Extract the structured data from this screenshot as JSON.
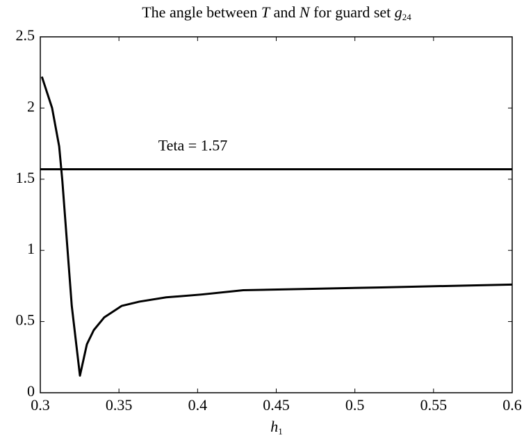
{
  "chart_data": {
    "type": "line",
    "title": [
      "The angle between ",
      "T",
      " and ",
      "N",
      " for guard set ",
      "g",
      "24"
    ],
    "xlabel": [
      "h",
      "1"
    ],
    "x": [
      0.301,
      0.3075,
      0.312,
      0.314,
      0.317,
      0.32,
      0.3252,
      0.3296,
      0.334,
      0.3407,
      0.3517,
      0.363,
      0.38,
      0.4025,
      0.429,
      0.473,
      0.517,
      0.6
    ],
    "series": [
      {
        "color": "#000000",
        "values": [
          2.22,
          2.0,
          1.73,
          1.49,
          1.05,
          0.61,
          0.12,
          0.34,
          0.44,
          0.53,
          0.61,
          0.64,
          0.67,
          0.69,
          0.72,
          0.73,
          0.74,
          0.76
        ]
      }
    ],
    "hlines": [
      {
        "value": 1.57,
        "label": "Teta = 1.57",
        "color": "#000000"
      }
    ],
    "xlim": [
      0.3,
      0.6
    ],
    "xticks": [
      0.3,
      0.35,
      0.4,
      0.45,
      0.5,
      0.55,
      0.6
    ],
    "ylim": [
      0,
      2.5
    ],
    "yticks": [
      0,
      0.5,
      1,
      1.5,
      2,
      2.5
    ],
    "grid": false
  }
}
